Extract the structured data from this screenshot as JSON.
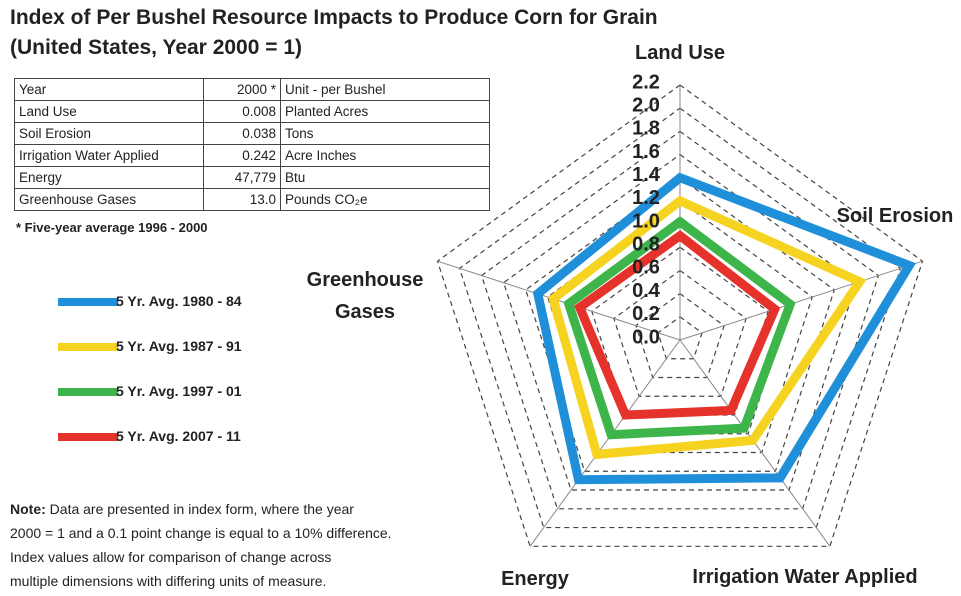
{
  "chart_data": {
    "type": "radar",
    "title": "Index of Per Bushel Resource Impacts to Produce Corn for Grain",
    "subtitle": "(United States, Year  2000 = 1)",
    "categories": [
      "Land Use",
      "Soil Erosion",
      "Irrigation Water Applied",
      "Energy",
      "Greenhouse Gases"
    ],
    "series": [
      {
        "name": "5 Yr. Avg. 1980 - 84",
        "color": "#1e8fd8",
        "values": [
          1.4,
          2.08,
          1.47,
          1.49,
          1.29
        ]
      },
      {
        "name": "5 Yr. Avg. 1987 - 91",
        "color": "#f6d320",
        "values": [
          1.2,
          1.63,
          1.07,
          1.22,
          1.15
        ]
      },
      {
        "name": "5 Yr. Avg. 1997 - 01",
        "color": "#3db54b",
        "values": [
          1.02,
          1.0,
          0.94,
          1.01,
          1.01
        ]
      },
      {
        "name": "5 Yr. Avg. 2007 - 11",
        "color": "#e5322a",
        "values": [
          0.9,
          0.86,
          0.75,
          0.8,
          0.91
        ]
      }
    ],
    "ylim": [
      0,
      2.2
    ],
    "yticks": [
      {
        "value": 0,
        "label": "0.0"
      },
      0.2,
      0.4,
      0.6,
      0.8,
      {
        "value": 1,
        "label": "1.0"
      },
      1.2,
      1.4,
      1.6,
      1.8,
      {
        "value": 2,
        "label": "2.0"
      },
      2.2
    ],
    "grid": true
  },
  "table": {
    "header": [
      "Year",
      "2000 *",
      "Unit - per Bushel"
    ],
    "rows": [
      [
        "Land Use",
        "0.008",
        "Planted Acres"
      ],
      [
        "Soil Erosion",
        "0.038",
        "Tons"
      ],
      [
        "Irrigation Water Applied",
        "0.242",
        "Acre Inches"
      ],
      [
        "Energy",
        "47,779",
        "Btu"
      ],
      [
        "Greenhouse Gases",
        "13.0",
        "Pounds CO₂e"
      ]
    ]
  },
  "footnote": "* Five-year average 1996 - 2000",
  "note": {
    "label": "Note:",
    "lines": [
      "Data are presented in index form, where the year",
      "2000 = 1 and a 0.1 point change is equal to a 10%  difference.",
      "Index values allow for comparison of change across",
      "multiple dimensions  with differing units of measure."
    ]
  }
}
